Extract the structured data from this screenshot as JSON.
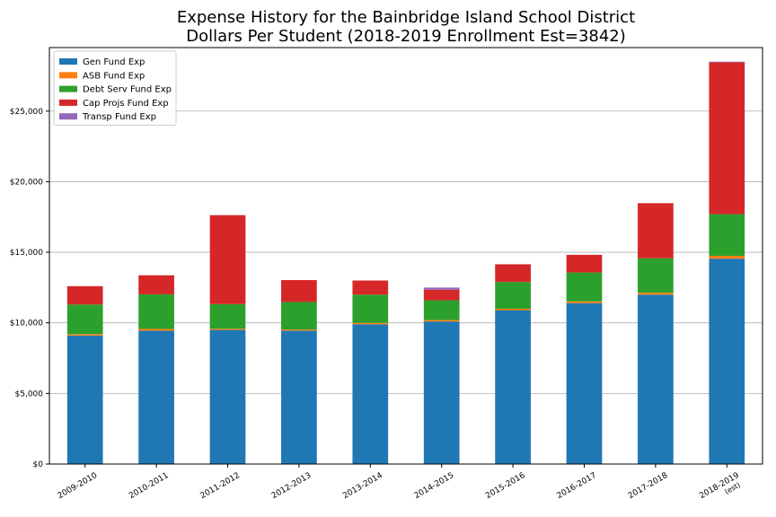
{
  "chart_data": {
    "type": "bar",
    "stacked": true,
    "title": "Expense History for the Bainbridge Island School District",
    "subtitle": "Dollars Per Student (2018-2019 Enrollment Est=3842)",
    "xlabel": "",
    "ylabel": "",
    "ylim": [
      0,
      29500
    ],
    "yticks": [
      0,
      5000,
      10000,
      15000,
      20000,
      25000
    ],
    "ytick_labels": [
      "$0",
      "$5,000",
      "$10,000",
      "$15,000",
      "$20,000",
      "$25,000"
    ],
    "grid": "horizontal",
    "legend_position": "top-left",
    "categories": [
      "2009-2010",
      "2010-2011",
      "2011-2012",
      "2012-2013",
      "2013-2014",
      "2014-2015",
      "2015-2016",
      "2016-2017",
      "2017-2018",
      "2018-2019\n(est)"
    ],
    "series": [
      {
        "name": "Gen Fund Exp",
        "color": "#1f77b4",
        "values": [
          9100,
          9450,
          9500,
          9450,
          9900,
          10100,
          10900,
          11400,
          12000,
          14550
        ]
      },
      {
        "name": "ASB Fund Exp",
        "color": "#ff7f0e",
        "values": [
          100,
          120,
          80,
          80,
          100,
          100,
          100,
          120,
          130,
          200
        ]
      },
      {
        "name": "Debt Serv Fund Exp",
        "color": "#2ca02c",
        "values": [
          2100,
          2450,
          1750,
          1950,
          2000,
          1400,
          1900,
          2050,
          2450,
          2950
        ]
      },
      {
        "name": "Cap Projs Fund Exp",
        "color": "#d62728",
        "values": [
          1300,
          1350,
          6300,
          1550,
          1000,
          750,
          1250,
          1250,
          3900,
          10750
        ]
      },
      {
        "name": "Transp Fund Exp",
        "color": "#9467bd",
        "values": [
          0,
          0,
          0,
          0,
          0,
          150,
          0,
          0,
          0,
          50
        ]
      }
    ]
  }
}
